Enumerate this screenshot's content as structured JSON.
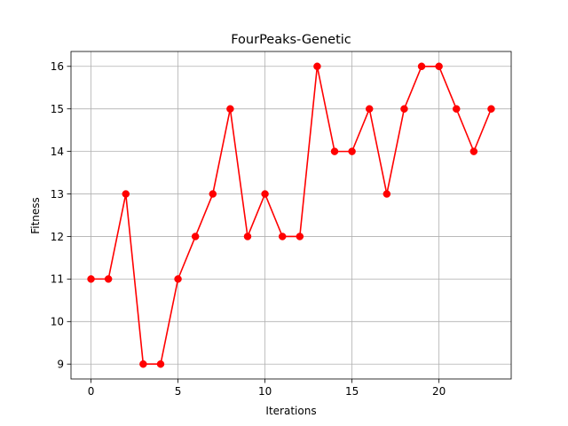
{
  "chart_data": {
    "type": "line",
    "title": "FourPeaks-Genetic",
    "xlabel": "Iterations",
    "ylabel": "Fitness",
    "x": [
      0,
      1,
      2,
      3,
      4,
      5,
      6,
      7,
      8,
      9,
      10,
      11,
      12,
      13,
      14,
      15,
      16,
      17,
      18,
      19,
      20,
      21,
      22,
      23
    ],
    "series": [
      {
        "values": [
          11,
          11,
          13,
          9,
          9,
          11,
          12,
          13,
          15,
          12,
          13,
          12,
          12,
          16,
          14,
          14,
          15,
          13,
          15,
          16,
          16,
          15,
          14,
          15
        ],
        "color": "#ff0000",
        "marker": "circle"
      }
    ],
    "xlim": [
      -1.15,
      24.15
    ],
    "ylim": [
      8.65,
      16.35
    ],
    "xticks": [
      0,
      5,
      10,
      15,
      20
    ],
    "yticks": [
      9,
      10,
      11,
      12,
      13,
      14,
      15,
      16
    ],
    "xtick_labels": [
      "0",
      "5",
      "10",
      "15",
      "20"
    ],
    "ytick_labels": [
      "9",
      "10",
      "11",
      "12",
      "13",
      "14",
      "15",
      "16"
    ],
    "grid": true,
    "grid_color": "#b0b0b0",
    "axes_color": "#000000"
  }
}
